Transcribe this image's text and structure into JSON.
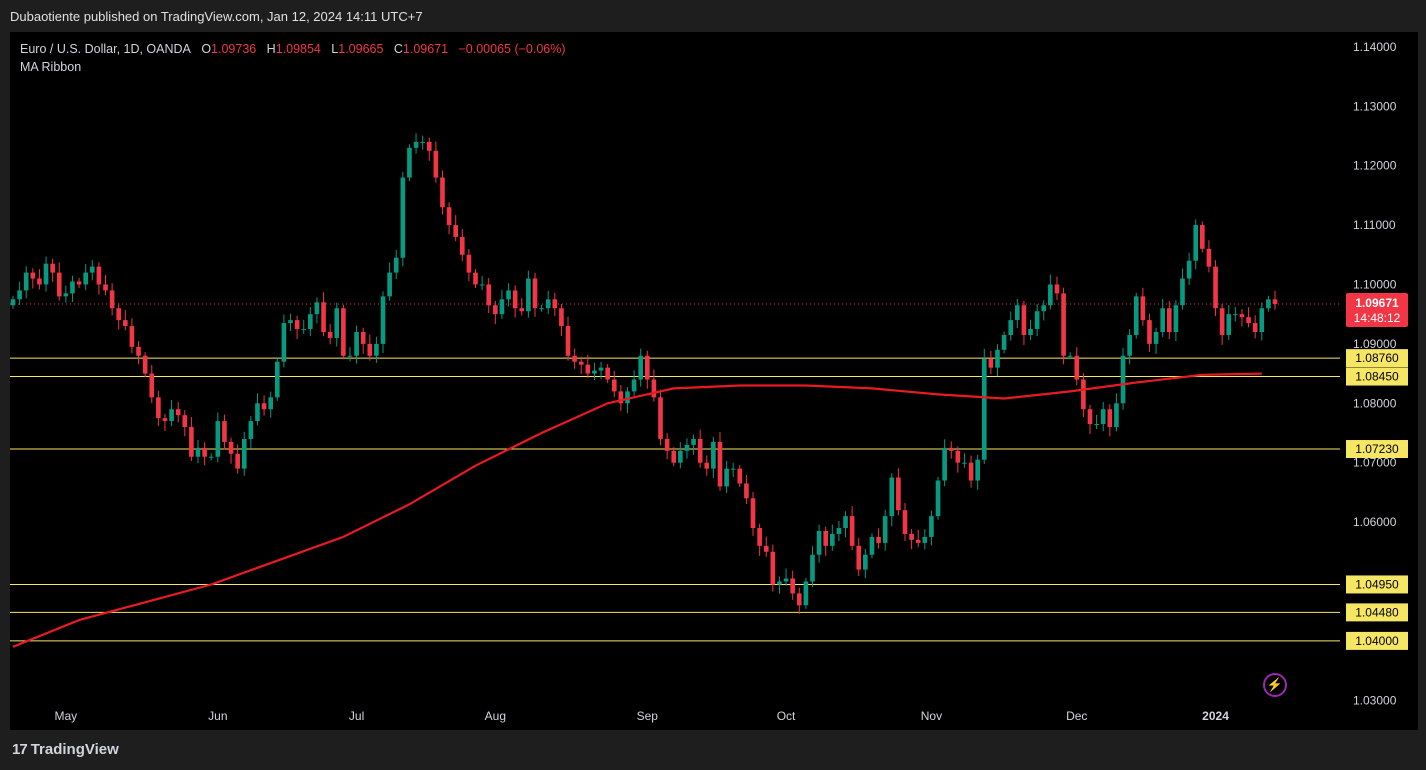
{
  "header": {
    "publisher": "Dubaotiente published on TradingView.com, Jan 12, 2024 14:11 UTC+7"
  },
  "legend": {
    "symbol": "Euro / U.S. Dollar, 1D, OANDA",
    "o_label": "O",
    "o_value": "1.09736",
    "h_label": "H",
    "h_value": "1.09854",
    "l_label": "L",
    "l_value": "1.09665",
    "c_label": "C",
    "c_value": "1.09671",
    "change": "−0.00065 (−0.06%)",
    "indicator": "MA Ribbon"
  },
  "footer": {
    "brand": "TradingView",
    "logo_mark": "17"
  },
  "icons": {
    "flash": "flash-icon"
  },
  "colors": {
    "up": "#089981",
    "down": "#f23645",
    "ma": "#e81b23",
    "level": "#f5e663",
    "price_badge": "#f23645"
  },
  "chart_data": {
    "type": "candlestick",
    "symbol": "EURUSD",
    "timeframe": "1D",
    "ylim": [
      1.025,
      1.1425
    ],
    "y_ticks": [
      "1.14000",
      "1.13000",
      "1.12000",
      "1.11000",
      "1.10000",
      "1.09000",
      "1.08000",
      "1.07000",
      "1.06000",
      "1.05000",
      "1.04000",
      "1.03000"
    ],
    "x_ticks": [
      {
        "label": "May",
        "index": 8
      },
      {
        "label": "Jun",
        "index": 31
      },
      {
        "label": "Jul",
        "index": 52
      },
      {
        "label": "Aug",
        "index": 73
      },
      {
        "label": "Sep",
        "index": 96
      },
      {
        "label": "Oct",
        "index": 117
      },
      {
        "label": "Nov",
        "index": 139
      },
      {
        "label": "Dec",
        "index": 161
      },
      {
        "label": "2024",
        "index": 182
      }
    ],
    "current_price": {
      "value": 1.09671,
      "label": "1.09671",
      "countdown": "14:48:12"
    },
    "levels": [
      {
        "value": 1.0876,
        "label": "1.08760"
      },
      {
        "value": 1.0845,
        "label": "1.08450"
      },
      {
        "value": 1.0723,
        "label": "1.07230"
      },
      {
        "value": 1.0495,
        "label": "1.04950"
      },
      {
        "value": 1.0448,
        "label": "1.04480"
      },
      {
        "value": 1.04,
        "label": "1.04000"
      }
    ],
    "closes": [
      1.0975,
      1.099,
      1.102,
      1.101,
      1.1,
      1.1035,
      1.102,
      1.098,
      1.0985,
      1.1005,
      1.1,
      1.102,
      1.103,
      1.1,
      1.099,
      1.096,
      1.094,
      1.093,
      1.0895,
      1.088,
      1.085,
      1.081,
      1.0775,
      1.077,
      1.079,
      1.078,
      1.076,
      1.071,
      1.0725,
      1.071,
      1.071,
      1.077,
      1.0735,
      1.0715,
      1.069,
      1.074,
      1.077,
      1.08,
      1.079,
      1.081,
      1.087,
      1.0935,
      1.094,
      1.0925,
      1.0925,
      1.095,
      1.097,
      1.092,
      1.091,
      1.096,
      1.088,
      1.088,
      1.092,
      1.09,
      1.088,
      1.09,
      1.098,
      1.102,
      1.1045,
      1.118,
      1.123,
      1.124,
      1.124,
      1.1225,
      1.118,
      1.113,
      1.11,
      1.108,
      1.105,
      1.102,
      1.1,
      1.1,
      1.0965,
      1.095,
      1.0975,
      1.099,
      1.096,
      1.0955,
      1.101,
      1.096,
      1.096,
      1.0975,
      1.096,
      1.093,
      1.088,
      1.087,
      1.0865,
      1.085,
      1.0855,
      1.086,
      1.084,
      1.082,
      1.08,
      1.082,
      1.084,
      1.088,
      1.084,
      1.081,
      1.074,
      1.072,
      1.07,
      1.072,
      1.073,
      1.074,
      1.07,
      1.069,
      1.0735,
      1.066,
      1.069,
      1.069,
      1.0665,
      1.064,
      1.059,
      1.056,
      1.055,
      1.0495,
      1.05,
      1.0505,
      1.048,
      1.046,
      1.05,
      1.0545,
      1.0585,
      1.056,
      1.058,
      1.059,
      1.061,
      1.056,
      1.052,
      1.0545,
      1.0575,
      1.0565,
      1.061,
      1.0675,
      1.062,
      1.058,
      1.057,
      1.0565,
      1.0575,
      1.061,
      1.067,
      1.0725,
      1.072,
      1.07,
      1.07,
      1.067,
      1.0705,
      1.0875,
      1.086,
      1.089,
      1.0915,
      1.094,
      1.0965,
      1.0915,
      1.0925,
      1.0955,
      1.0965,
      1.1,
      1.0985,
      1.088,
      1.088,
      1.084,
      1.079,
      1.0765,
      1.0765,
      1.079,
      1.076,
      1.08,
      1.088,
      1.0915,
      1.098,
      1.094,
      1.09,
      1.092,
      1.096,
      1.092,
      1.0965,
      1.101,
      1.104,
      1.11,
      1.106,
      1.103,
      1.096,
      1.0915,
      1.095,
      1.095,
      1.0945,
      1.0935,
      1.092,
      1.096,
      1.0975,
      1.0967
    ],
    "wick": 0.0012,
    "ma_line": [
      [
        0,
        1.039
      ],
      [
        10,
        1.0435
      ],
      [
        20,
        1.0465
      ],
      [
        30,
        1.0495
      ],
      [
        40,
        1.0535
      ],
      [
        50,
        1.0575
      ],
      [
        60,
        1.063
      ],
      [
        70,
        1.0695
      ],
      [
        80,
        1.075
      ],
      [
        90,
        1.08
      ],
      [
        100,
        1.0825
      ],
      [
        110,
        1.083
      ],
      [
        120,
        1.083
      ],
      [
        130,
        1.0825
      ],
      [
        140,
        1.0815
      ],
      [
        150,
        1.0808
      ],
      [
        160,
        1.082
      ],
      [
        170,
        1.0835
      ],
      [
        180,
        1.0848
      ],
      [
        189,
        1.085
      ]
    ]
  }
}
